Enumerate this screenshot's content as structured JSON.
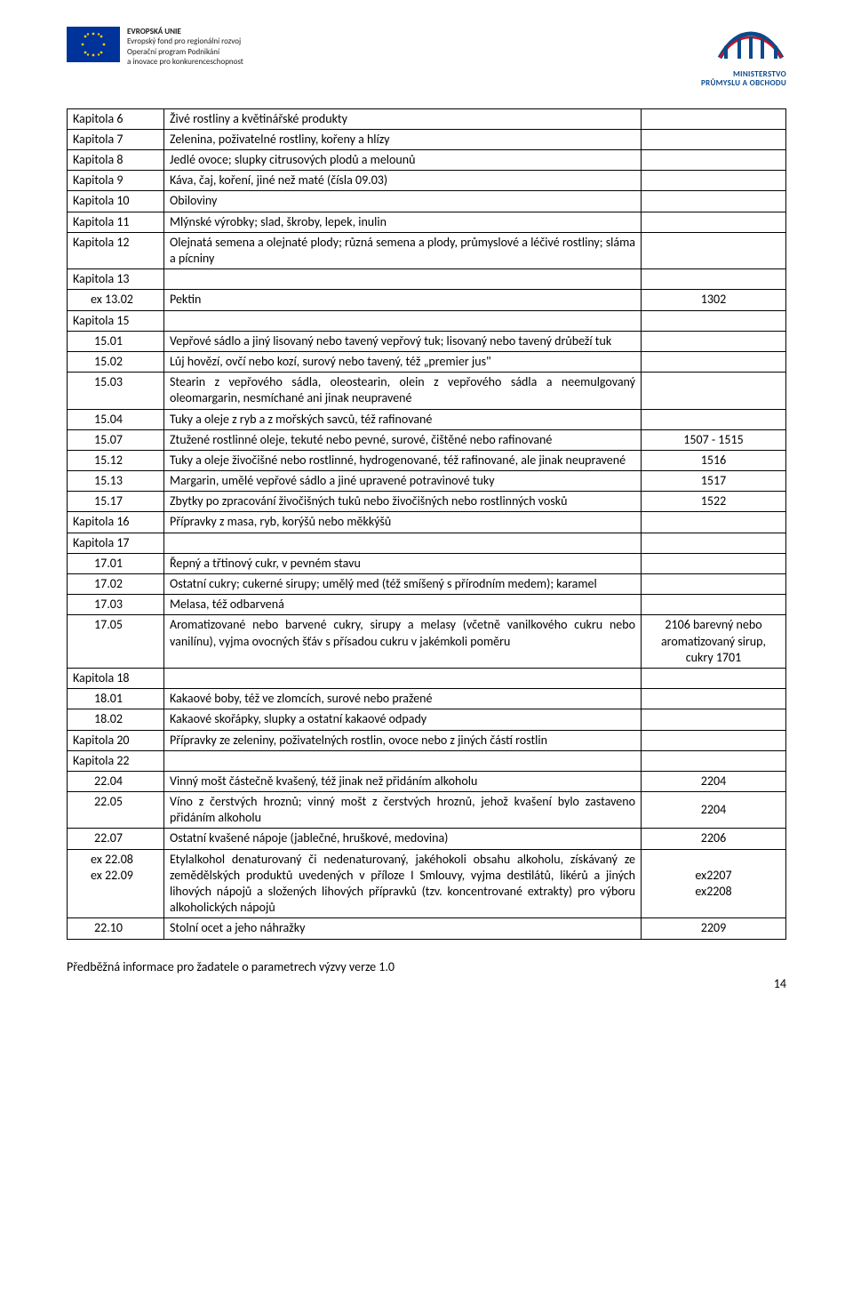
{
  "header": {
    "eu": {
      "line1": "EVROPSKÁ UNIE",
      "line2": "Evropský fond pro regionální rozvoj",
      "line3": "Operační program Podnikání",
      "line4": "a inovace pro konkurenceschopnost"
    },
    "mpo": {
      "line1": "MINISTERSTVO",
      "line2": "PRŮMYSLU A OBCHODU"
    }
  },
  "rows": [
    {
      "c1": "Kapitola 6",
      "c2": "Živé rostliny a květinářské produkty",
      "c3": "",
      "c1class": ""
    },
    {
      "c1": "Kapitola 7",
      "c2": "Zelenina, poživatelné rostliny, kořeny a hlízy",
      "c3": "",
      "c1class": ""
    },
    {
      "c1": "Kapitola 8",
      "c2": "Jedlé ovoce; slupky citrusových plodů a melounů",
      "c3": "",
      "c1class": ""
    },
    {
      "c1": "Kapitola 9",
      "c2": "Káva, čaj, koření, jiné než maté (čísla 09.03)",
      "c3": "",
      "c1class": ""
    },
    {
      "c1": "Kapitola 10",
      "c2": "Obiloviny",
      "c3": "",
      "c1class": ""
    },
    {
      "c1": "Kapitola 11",
      "c2": "Mlýnské výrobky; slad, škroby, lepek, inulin",
      "c3": "",
      "c1class": ""
    },
    {
      "c1": "Kapitola 12",
      "c2": "Olejnatá semena a olejnaté plody; různá semena a plody, průmyslové a léčivé rostliny; sláma a pícniny",
      "c3": "",
      "c1class": "",
      "justify": true
    },
    {
      "c1": "Kapitola 13",
      "c2": "",
      "c3": "",
      "c1class": ""
    },
    {
      "c1": "ex 13.02",
      "c2": "Pektin",
      "c3": "1302",
      "c1class": "indent-ex"
    },
    {
      "c1": "Kapitola 15",
      "c2": "",
      "c3": "",
      "c1class": ""
    },
    {
      "c1": "15.01",
      "c2": "Vepřové sádlo a jiný lisovaný nebo tavený vepřový tuk; lisovaný nebo tavený drůbeží tuk",
      "c3": "",
      "c1class": "indent-num",
      "justify": true
    },
    {
      "c1": "15.02",
      "c2": "Lůj hovězí, ovčí nebo kozí, surový nebo tavený, též „premier jus\"",
      "c3": "",
      "c1class": "indent-num"
    },
    {
      "c1": "15.03",
      "c2": "Stearin z vepřového sádla, oleostearin, olein z vepřového sádla a neemulgovaný oleomargarin, nesmíchané ani jinak neupravené",
      "c3": "",
      "c1class": "indent-num",
      "justify": true
    },
    {
      "c1": "15.04",
      "c2": "Tuky a oleje z ryb a z mořských savců, též rafinované",
      "c3": "",
      "c1class": "indent-num"
    },
    {
      "c1": "15.07",
      "c2": "Ztužené rostlinné oleje, tekuté nebo pevné, surové, čištěné nebo rafinované",
      "c3": "1507 - 1515",
      "c1class": "indent-num",
      "justify": true
    },
    {
      "c1": "15.12",
      "c2": "Tuky a oleje živočišné nebo rostlinné, hydrogenované, též rafinované, ale jinak neupravené",
      "c3": "1516",
      "c1class": "indent-num",
      "justify": true
    },
    {
      "c1": "15.13",
      "c2": "Margarin, umělé vepřové sádlo a jiné upravené potravinové tuky",
      "c3": "1517",
      "c1class": "indent-num"
    },
    {
      "c1": "15.17",
      "c2": "Zbytky po zpracování živočišných tuků nebo živočišných nebo rostlinných vosků",
      "c3": "1522",
      "c1class": "indent-num",
      "justify": true
    },
    {
      "c1": "Kapitola 16",
      "c2": "Přípravky z masa, ryb, korýšů nebo měkkýšů",
      "c3": "",
      "c1class": ""
    },
    {
      "c1": "Kapitola 17",
      "c2": "",
      "c3": "",
      "c1class": ""
    },
    {
      "c1": "17.01",
      "c2": "Řepný a třtinový cukr, v pevném stavu",
      "c3": "",
      "c1class": "indent-num"
    },
    {
      "c1": "17.02",
      "c2": "Ostatní cukry; cukerné sirupy; umělý med (též smíšený s přírodním medem); karamel",
      "c3": "",
      "c1class": "indent-num",
      "justify": true
    },
    {
      "c1": "17.03",
      "c2": "Melasa, též odbarvená",
      "c3": "",
      "c1class": "indent-num"
    },
    {
      "c1": "17.05",
      "c2": "Aromatizované nebo barvené cukry, sirupy a melasy (včetně vanilkového cukru nebo vanilínu), vyjma ovocných šťáv s přísadou cukru v jakémkoli poměru",
      "c3": "2106 barevný nebo aromatizovaný sirup, cukry 1701",
      "c1class": "indent-num",
      "justify": true
    },
    {
      "c1": "Kapitola 18",
      "c2": "",
      "c3": "",
      "c1class": ""
    },
    {
      "c1": "18.01",
      "c2": "Kakaové boby, též ve zlomcích, surové nebo pražené",
      "c3": "",
      "c1class": "indent-num"
    },
    {
      "c1": "18.02",
      "c2": "Kakaové skořápky, slupky a ostatní kakaové odpady",
      "c3": "",
      "c1class": "indent-num"
    },
    {
      "c1": "Kapitola 20",
      "c2": "Přípravky ze zeleniny, poživatelných rostlin, ovoce nebo z jiných částí rostlin",
      "c3": "",
      "c1class": "",
      "justify": true
    },
    {
      "c1": "Kapitola 22",
      "c2": "",
      "c3": "",
      "c1class": ""
    },
    {
      "c1": "22.04",
      "c2": "Vinný mošt částečně kvašený, též jinak než přidáním alkoholu",
      "c3": "2204",
      "c1class": "indent-num"
    },
    {
      "c1": "22.05",
      "c2": "Víno z čerstvých hroznů; vinný mošt z čerstvých hroznů, jehož kvašení bylo zastaveno přidáním alkoholu",
      "c3": "2204",
      "c1class": "indent-num",
      "justify": true
    },
    {
      "c1": "22.07",
      "c2": "Ostatní kvašené nápoje (jablečné, hruškové, medovina)",
      "c3": "2206",
      "c1class": "indent-num"
    },
    {
      "c1": "ex 22.08\nex 22.09",
      "c2": "Etylalkohol denaturovaný či nedenaturovaný, jakéhokoli obsahu alkoholu, získávaný ze zemědělských produktů uvedených v příloze I Smlouvy, vyjma destilátů, likérů a jiných lihových nápojů a složených lihových přípravků (tzv. koncentrované extrakty) pro výboru alkoholických nápojů",
      "c3_multi": [
        "ex2207",
        "ex2208"
      ],
      "c1class": "indent-ex",
      "justify": true,
      "multiline_c1": true
    },
    {
      "c1": "22.10",
      "c2": "Stolní ocet a jeho náhražky",
      "c3": "2209",
      "c1class": "indent-num"
    }
  ],
  "footer": {
    "text": "Předběžná informace pro žadatele o parametrech výzvy verze 1.0",
    "pagenum": "14"
  },
  "colors": {
    "eu_blue": "#003399",
    "eu_gold": "#ffcc00",
    "mpo_blue": "#0a4a8a",
    "mpo_accent": "#ce1126",
    "border": "#000000",
    "text": "#000000"
  }
}
